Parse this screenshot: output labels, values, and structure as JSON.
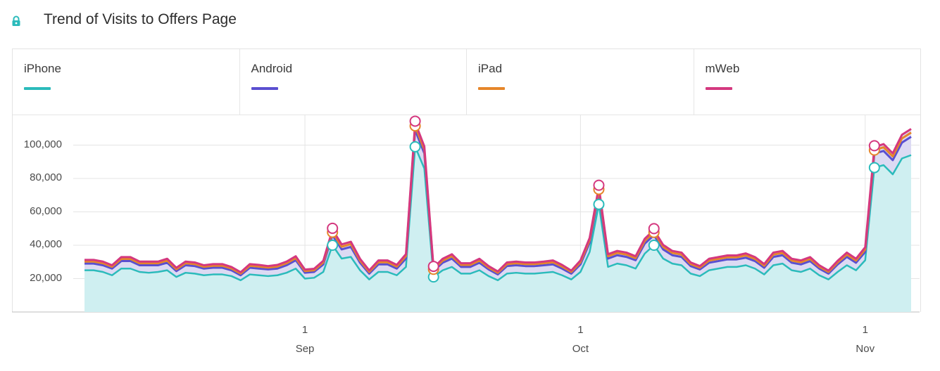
{
  "header": {
    "title": "Trend of Visits to Offers Page",
    "icon": "lock-icon"
  },
  "colors": {
    "iPhone": "#2bbbbb",
    "Android": "#5a4fd0",
    "iPad": "#e6862a",
    "mWeb": "#d4387f",
    "iPhone_fill": "#cfeff1",
    "stack_fill": "#dcdaf3"
  },
  "legend": [
    {
      "name": "iPhone",
      "color": "#2bbbbb"
    },
    {
      "name": "Android",
      "color": "#5a4fd0"
    },
    {
      "name": "iPad",
      "color": "#e6862a"
    },
    {
      "name": "mWeb",
      "color": "#d4387f"
    }
  ],
  "chart_data": {
    "type": "area",
    "stacked": true,
    "y_ticks": [
      "20,000",
      "40,000",
      "60,000",
      "80,000",
      "100,000"
    ],
    "x_ticks": [
      {
        "day": "1",
        "month": "Sep"
      },
      {
        "day": "1",
        "month": "Oct"
      },
      {
        "day": "1",
        "month": "Nov"
      }
    ],
    "ylim": [
      0,
      115000
    ],
    "start_date": "2017-08-08",
    "series": [
      {
        "name": "iPhone",
        "values": [
          25000,
          25000,
          24000,
          22000,
          26000,
          26000,
          24000,
          23500,
          24000,
          25000,
          21000,
          23500,
          23000,
          22000,
          22500,
          22500,
          21500,
          19000,
          22500,
          22000,
          21500,
          22000,
          23500,
          26000,
          20000,
          20500,
          24000,
          40000,
          32000,
          33000,
          25000,
          19500,
          24000,
          24000,
          22000,
          27000,
          99000,
          86000,
          21000,
          25000,
          27000,
          23000,
          23000,
          25000,
          21500,
          19000,
          23000,
          23500,
          23000,
          23000,
          23500,
          24000,
          22000,
          19500,
          24000,
          36000,
          64500,
          27000,
          29000,
          28000,
          26000,
          35000,
          40000,
          32000,
          29000,
          28000,
          23000,
          21500,
          25000,
          26000,
          27000,
          27000,
          28000,
          26000,
          22500,
          28000,
          29000,
          25000,
          24000,
          26000,
          22000,
          19500,
          24000,
          28000,
          25000,
          31000,
          86500,
          88000,
          82500,
          92000,
          94000
        ]
      },
      {
        "name": "Android",
        "values": [
          4000,
          4000,
          4000,
          4000,
          4500,
          4500,
          4000,
          4500,
          4000,
          4500,
          3500,
          4500,
          4500,
          4000,
          4000,
          4000,
          3500,
          3000,
          4000,
          4000,
          4000,
          4000,
          4500,
          5000,
          3500,
          3500,
          4500,
          6000,
          5500,
          6000,
          4500,
          3500,
          4500,
          4500,
          4000,
          5000,
          10000,
          9000,
          3500,
          4500,
          5000,
          4000,
          4000,
          4500,
          4000,
          3500,
          4500,
          4500,
          4500,
          4500,
          4500,
          4500,
          4000,
          3500,
          4500,
          5500,
          7000,
          5000,
          5000,
          5000,
          5000,
          6000,
          6000,
          5500,
          5000,
          5000,
          4500,
          4000,
          4500,
          4500,
          4500,
          4500,
          4500,
          4500,
          4000,
          5000,
          5000,
          4500,
          4500,
          4500,
          4000,
          3500,
          4500,
          5000,
          4500,
          5000,
          8500,
          8500,
          8500,
          9500,
          11000
        ]
      },
      {
        "name": "iPad",
        "values": [
          1200,
          1200,
          1200,
          1100,
          1300,
          1300,
          1200,
          1200,
          1200,
          1300,
          1100,
          1200,
          1200,
          1100,
          1200,
          1200,
          1100,
          1000,
          1200,
          1200,
          1100,
          1200,
          1200,
          1300,
          1000,
          1000,
          1200,
          1800,
          1600,
          1700,
          1300,
          1000,
          1300,
          1300,
          1200,
          1500,
          2500,
          2300,
          1100,
          1300,
          1400,
          1200,
          1200,
          1300,
          1100,
          1000,
          1200,
          1200,
          1200,
          1200,
          1200,
          1300,
          1200,
          1000,
          1300,
          1600,
          2000,
          1400,
          1400,
          1400,
          1300,
          1600,
          1700,
          1500,
          1400,
          1400,
          1200,
          1100,
          1300,
          1300,
          1300,
          1300,
          1400,
          1300,
          1200,
          1400,
          1400,
          1300,
          1300,
          1300,
          1100,
          1000,
          1200,
          1400,
          1300,
          1500,
          2000,
          2200,
          2200,
          2500,
          2500
        ]
      },
      {
        "name": "mWeb",
        "values": [
          1000,
          1000,
          1000,
          900,
          1100,
          1100,
          1000,
          1000,
          1000,
          1100,
          900,
          1000,
          1000,
          900,
          1000,
          1000,
          900,
          800,
          1000,
          1000,
          900,
          1000,
          1000,
          1100,
          900,
          900,
          1000,
          1500,
          1400,
          1400,
          1100,
          900,
          1100,
          1100,
          1000,
          1200,
          2000,
          1900,
          900,
          1100,
          1200,
          1000,
          1000,
          1100,
          900,
          800,
          1000,
          1000,
          1000,
          1000,
          1000,
          1100,
          1000,
          800,
          1100,
          1300,
          1600,
          1200,
          1200,
          1200,
          1100,
          1300,
          1400,
          1200,
          1200,
          1200,
          1000,
          900,
          1100,
          1100,
          1100,
          1100,
          1200,
          1100,
          1000,
          1200,
          1200,
          1100,
          1100,
          1100,
          900,
          800,
          1000,
          1200,
          1100,
          1300,
          1800,
          1900,
          1900,
          2200,
          2200
        ]
      }
    ],
    "highlighted_indices": [
      27,
      36,
      38,
      56,
      62,
      86
    ]
  }
}
